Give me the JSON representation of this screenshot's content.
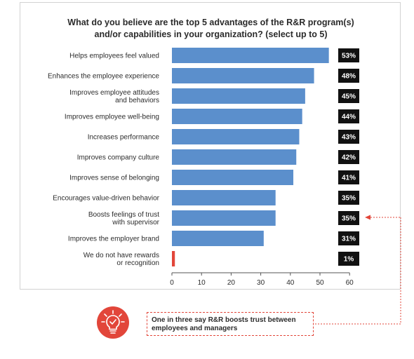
{
  "chart_data": {
    "type": "bar",
    "orientation": "horizontal",
    "title": [
      "What do you believe are the top 5 advantages of the R&R program(s)",
      "and/or capabilities in your organization? (select up to 5)"
    ],
    "categories": [
      [
        "Helps employees feel valued"
      ],
      [
        "Enhances the employee experience"
      ],
      [
        "Improves employee attitudes",
        "and behaviors"
      ],
      [
        "Improves employee well-being"
      ],
      [
        "Increases performance"
      ],
      [
        "Improves company culture"
      ],
      [
        "Improves sense of belonging"
      ],
      [
        "Encourages value-driven behavior"
      ],
      [
        "Boosts feelings of trust",
        "with supervisor"
      ],
      [
        "Improves the employer brand"
      ],
      [
        "We do not have rewards",
        "or recognition"
      ]
    ],
    "values": [
      53,
      48,
      45,
      44,
      43,
      42,
      41,
      35,
      35,
      31,
      1
    ],
    "value_labels": [
      "53%",
      "48%",
      "45%",
      "44%",
      "43%",
      "42%",
      "41%",
      "35%",
      "35%",
      "31%",
      "1%"
    ],
    "bar_colors": [
      "#5b8fcc",
      "#5b8fcc",
      "#5b8fcc",
      "#5b8fcc",
      "#5b8fcc",
      "#5b8fcc",
      "#5b8fcc",
      "#5b8fcc",
      "#5b8fcc",
      "#5b8fcc",
      "#e2463a"
    ],
    "xticks": [
      0,
      10,
      20,
      30,
      40,
      50,
      60
    ],
    "xlim": [
      0,
      60
    ],
    "grid": false,
    "highlighted_category_index": 8
  },
  "callout": {
    "text": "One in three say R&R boosts trust between employees and managers",
    "icon": "lightbulb-check-icon",
    "accent_color": "#e2463a"
  }
}
